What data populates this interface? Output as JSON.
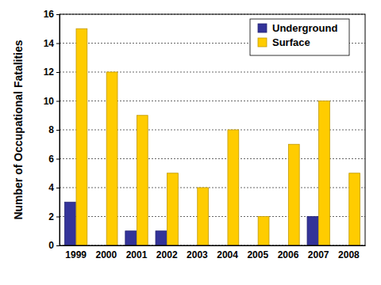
{
  "chart_data": {
    "type": "bar",
    "y_label": "Number of Occupational Fatalities",
    "categories": [
      "1999",
      "2000",
      "2001",
      "2002",
      "2003",
      "2004",
      "2005",
      "2006",
      "2007",
      "2008"
    ],
    "series": [
      {
        "name": "Underground",
        "color": "#333399",
        "values": [
          3,
          0,
          1,
          1,
          0,
          0,
          0,
          0,
          2,
          0
        ]
      },
      {
        "name": "Surface",
        "color": "#ffcc00",
        "values": [
          15,
          12,
          9,
          5,
          4,
          8,
          2,
          7,
          10,
          5
        ]
      }
    ],
    "ylim": [
      0,
      16
    ],
    "yticks": [
      0,
      2,
      4,
      6,
      8,
      10,
      12,
      14,
      16
    ],
    "grid": true,
    "legend": "upper right"
  }
}
